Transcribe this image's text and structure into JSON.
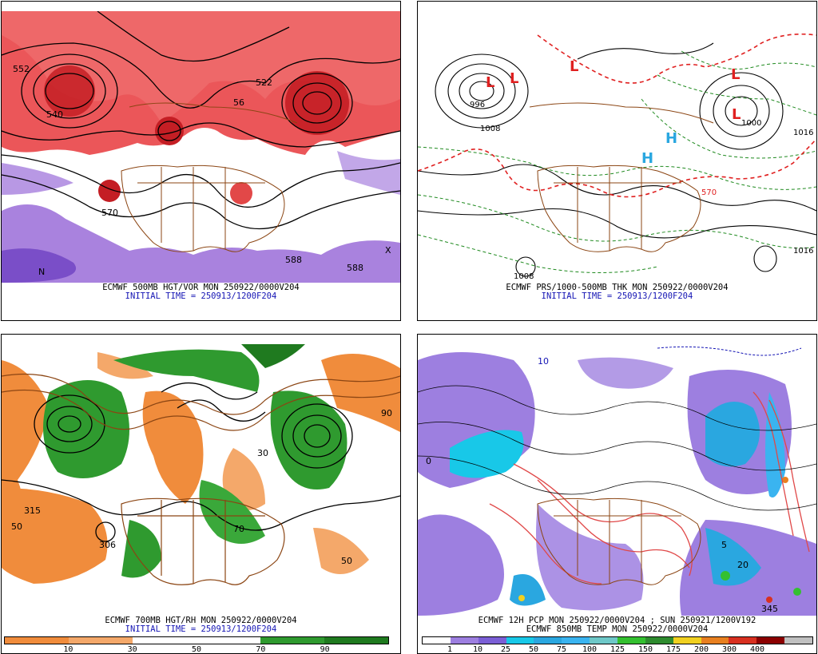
{
  "panels": [
    {
      "caption": "ECMWF 500MB HGT/VOR MON 250922/0000V204",
      "initial": "INITIAL TIME = 250913/1200F204",
      "labels": [
        "552",
        "540",
        "56",
        "522",
        "570",
        "588",
        "588",
        "N",
        "X"
      ]
    },
    {
      "caption": "ECMWF PRS/1000-500MB THK MON 250922/0000V204",
      "initial": "INITIAL TIME = 250913/1200F204",
      "labels": [
        "L",
        "L",
        "L",
        "L",
        "L",
        "H",
        "H",
        "1008",
        "1008",
        "1016",
        "996",
        "1000",
        "570",
        "1016"
      ]
    },
    {
      "caption": "ECMWF 700MB HGT/RH MON 250922/0000V204",
      "initial": "INITIAL TIME = 250913/1200F204",
      "labels": [
        "315",
        "306",
        "50",
        "90",
        "70",
        "30",
        "50"
      ],
      "colorbar": {
        "colors": [
          "#f08c3c",
          "#f4a86a",
          "#ffffff",
          "#ffffff",
          "#2f9a2f",
          "#1f7a1f"
        ],
        "ticks": [
          "10",
          "30",
          "50",
          "70",
          "90"
        ]
      }
    },
    {
      "caption": "ECMWF 12H PCP MON 250922/0000V204 ; SUN 250921/1200V192",
      "initial": "ECMWF 850MB TEMP MON 250922/0000V204",
      "labels": [
        "10",
        "0",
        "5",
        "20",
        "345"
      ],
      "colorbar": {
        "colors": [
          "#ffffff",
          "#9d7fe0",
          "#7b5fd6",
          "#18c8e8",
          "#2aa7e0",
          "#3ab4f0",
          "#6ec8c8",
          "#34c030",
          "#2e8b2e",
          "#f0d020",
          "#e88020",
          "#d83020",
          "#8b0000",
          "#c0c0c0"
        ],
        "ticks": [
          "1",
          "10",
          "25",
          "50",
          "75",
          "100",
          "125",
          "150",
          "175",
          "200",
          "300",
          "400"
        ]
      }
    }
  ]
}
